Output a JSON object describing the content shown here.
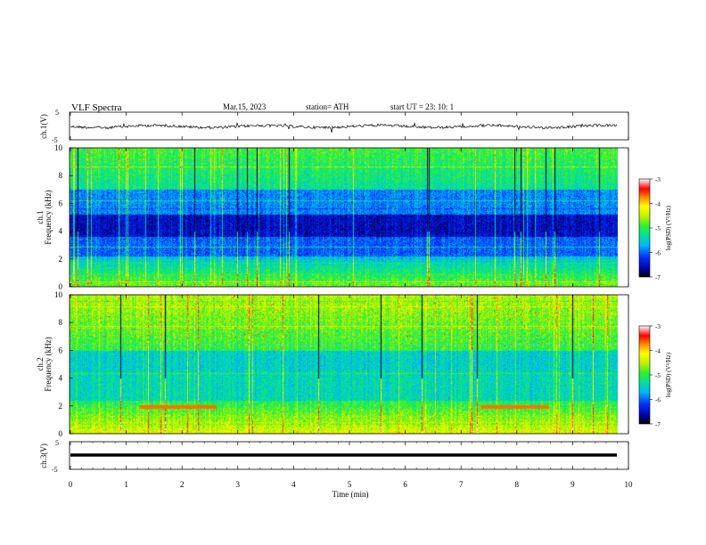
{
  "header": {
    "title": "VLF  Spectra",
    "date": "Mar.15, 2023",
    "station": "station= ATH",
    "start": "start  UT  =    23: 10: 1"
  },
  "panels": {
    "ch1_trace": {
      "ylabel": "ch.1(V)",
      "ytick_top": "5",
      "ytick_bottom": "-5"
    },
    "ch1_spec": {
      "ylabel_line1": "ch.1",
      "ylabel_line2": "Frequency  (kHz)"
    },
    "ch2_spec": {
      "ylabel_line1": "ch.2",
      "ylabel_line2": "Frequency  (kHz)"
    },
    "ch3_trace": {
      "ylabel": "ch.3(V)",
      "ytick_top": "5",
      "ytick_bottom": "-5"
    }
  },
  "colorbar": {
    "label": "log(PSD) (V²/Hz)",
    "ticks": [
      "-3",
      "-4",
      "-5",
      "-6",
      "-7"
    ]
  },
  "colors": {
    "cmap": [
      "#000000",
      "#0000a0",
      "#0030ff",
      "#00b4ff",
      "#00e0a0",
      "#30f030",
      "#c0f000",
      "#ffff00",
      "#ff8000",
      "#ff0000",
      "#ffffff"
    ]
  },
  "chart_data": [
    {
      "type": "line",
      "title": "ch.1(V)",
      "ylim": [
        -5,
        5
      ],
      "xlim": [
        0,
        10
      ],
      "x_ticks": [
        "0",
        "1",
        "2",
        "3",
        "4",
        "5",
        "6",
        "7",
        "8",
        "9",
        "10"
      ]
    },
    {
      "type": "heatmap",
      "title": "ch.1 spectrogram",
      "ylabel": "Frequency  (kHz)",
      "xlim": [
        0,
        10
      ],
      "ylim": [
        0,
        10
      ],
      "y_ticks": [
        "0",
        "2",
        "4",
        "6",
        "8",
        "10"
      ],
      "color_range": [
        -7,
        -3
      ]
    },
    {
      "type": "heatmap",
      "title": "ch.2 spectrogram",
      "ylabel": "Frequency  (kHz)",
      "xlim": [
        0,
        10
      ],
      "ylim": [
        0,
        10
      ],
      "y_ticks": [
        "0",
        "2",
        "4",
        "6",
        "8",
        "10"
      ],
      "color_range": [
        -7,
        -3
      ]
    },
    {
      "type": "line",
      "title": "ch.3(V)",
      "ylim": [
        -5,
        5
      ],
      "xlim": [
        0,
        10
      ],
      "x_ticks": [
        "0",
        "1",
        "2",
        "3",
        "4",
        "5",
        "6",
        "7",
        "8",
        "9",
        "10"
      ],
      "xlabel": "Time  (min)"
    }
  ]
}
